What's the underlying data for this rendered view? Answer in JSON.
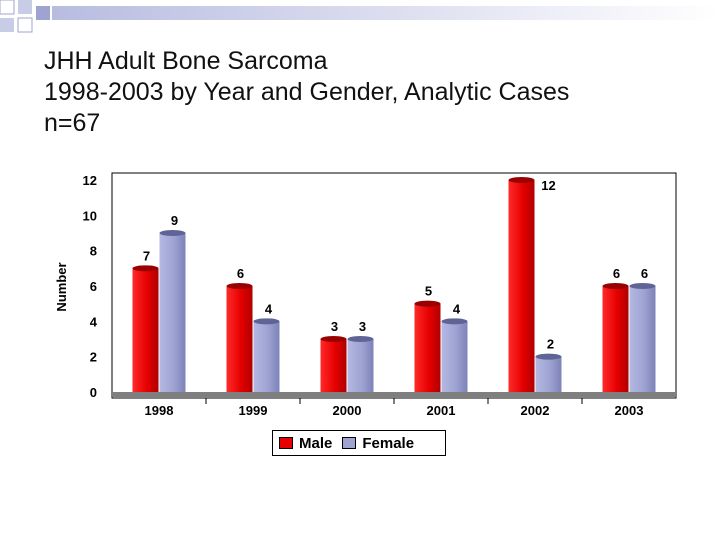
{
  "slide": {
    "title_lines": [
      "JHH Adult Bone Sarcoma",
      "1998-2003 by Year and Gender, Analytic Cases",
      "n=67"
    ]
  },
  "colors": {
    "male": "#e60000",
    "male_dark": "#9a0000",
    "female": "#9ea3d2",
    "female_dark": "#5f6496",
    "floor": "#7f7f7f",
    "deco_square": "#c9cce6"
  },
  "chart_data": {
    "type": "bar",
    "categories": [
      "1998",
      "1999",
      "2000",
      "2001",
      "2002",
      "2003"
    ],
    "series": [
      {
        "name": "Male",
        "values": [
          7,
          6,
          3,
          5,
          12,
          6
        ]
      },
      {
        "name": "Female",
        "values": [
          9,
          4,
          3,
          4,
          2,
          6
        ]
      }
    ],
    "ylabel": "Number",
    "ylim": [
      0,
      12
    ],
    "yticks": [
      0,
      2,
      4,
      6,
      8,
      10,
      12
    ],
    "data_labels": true,
    "legend_position": "bottom"
  }
}
